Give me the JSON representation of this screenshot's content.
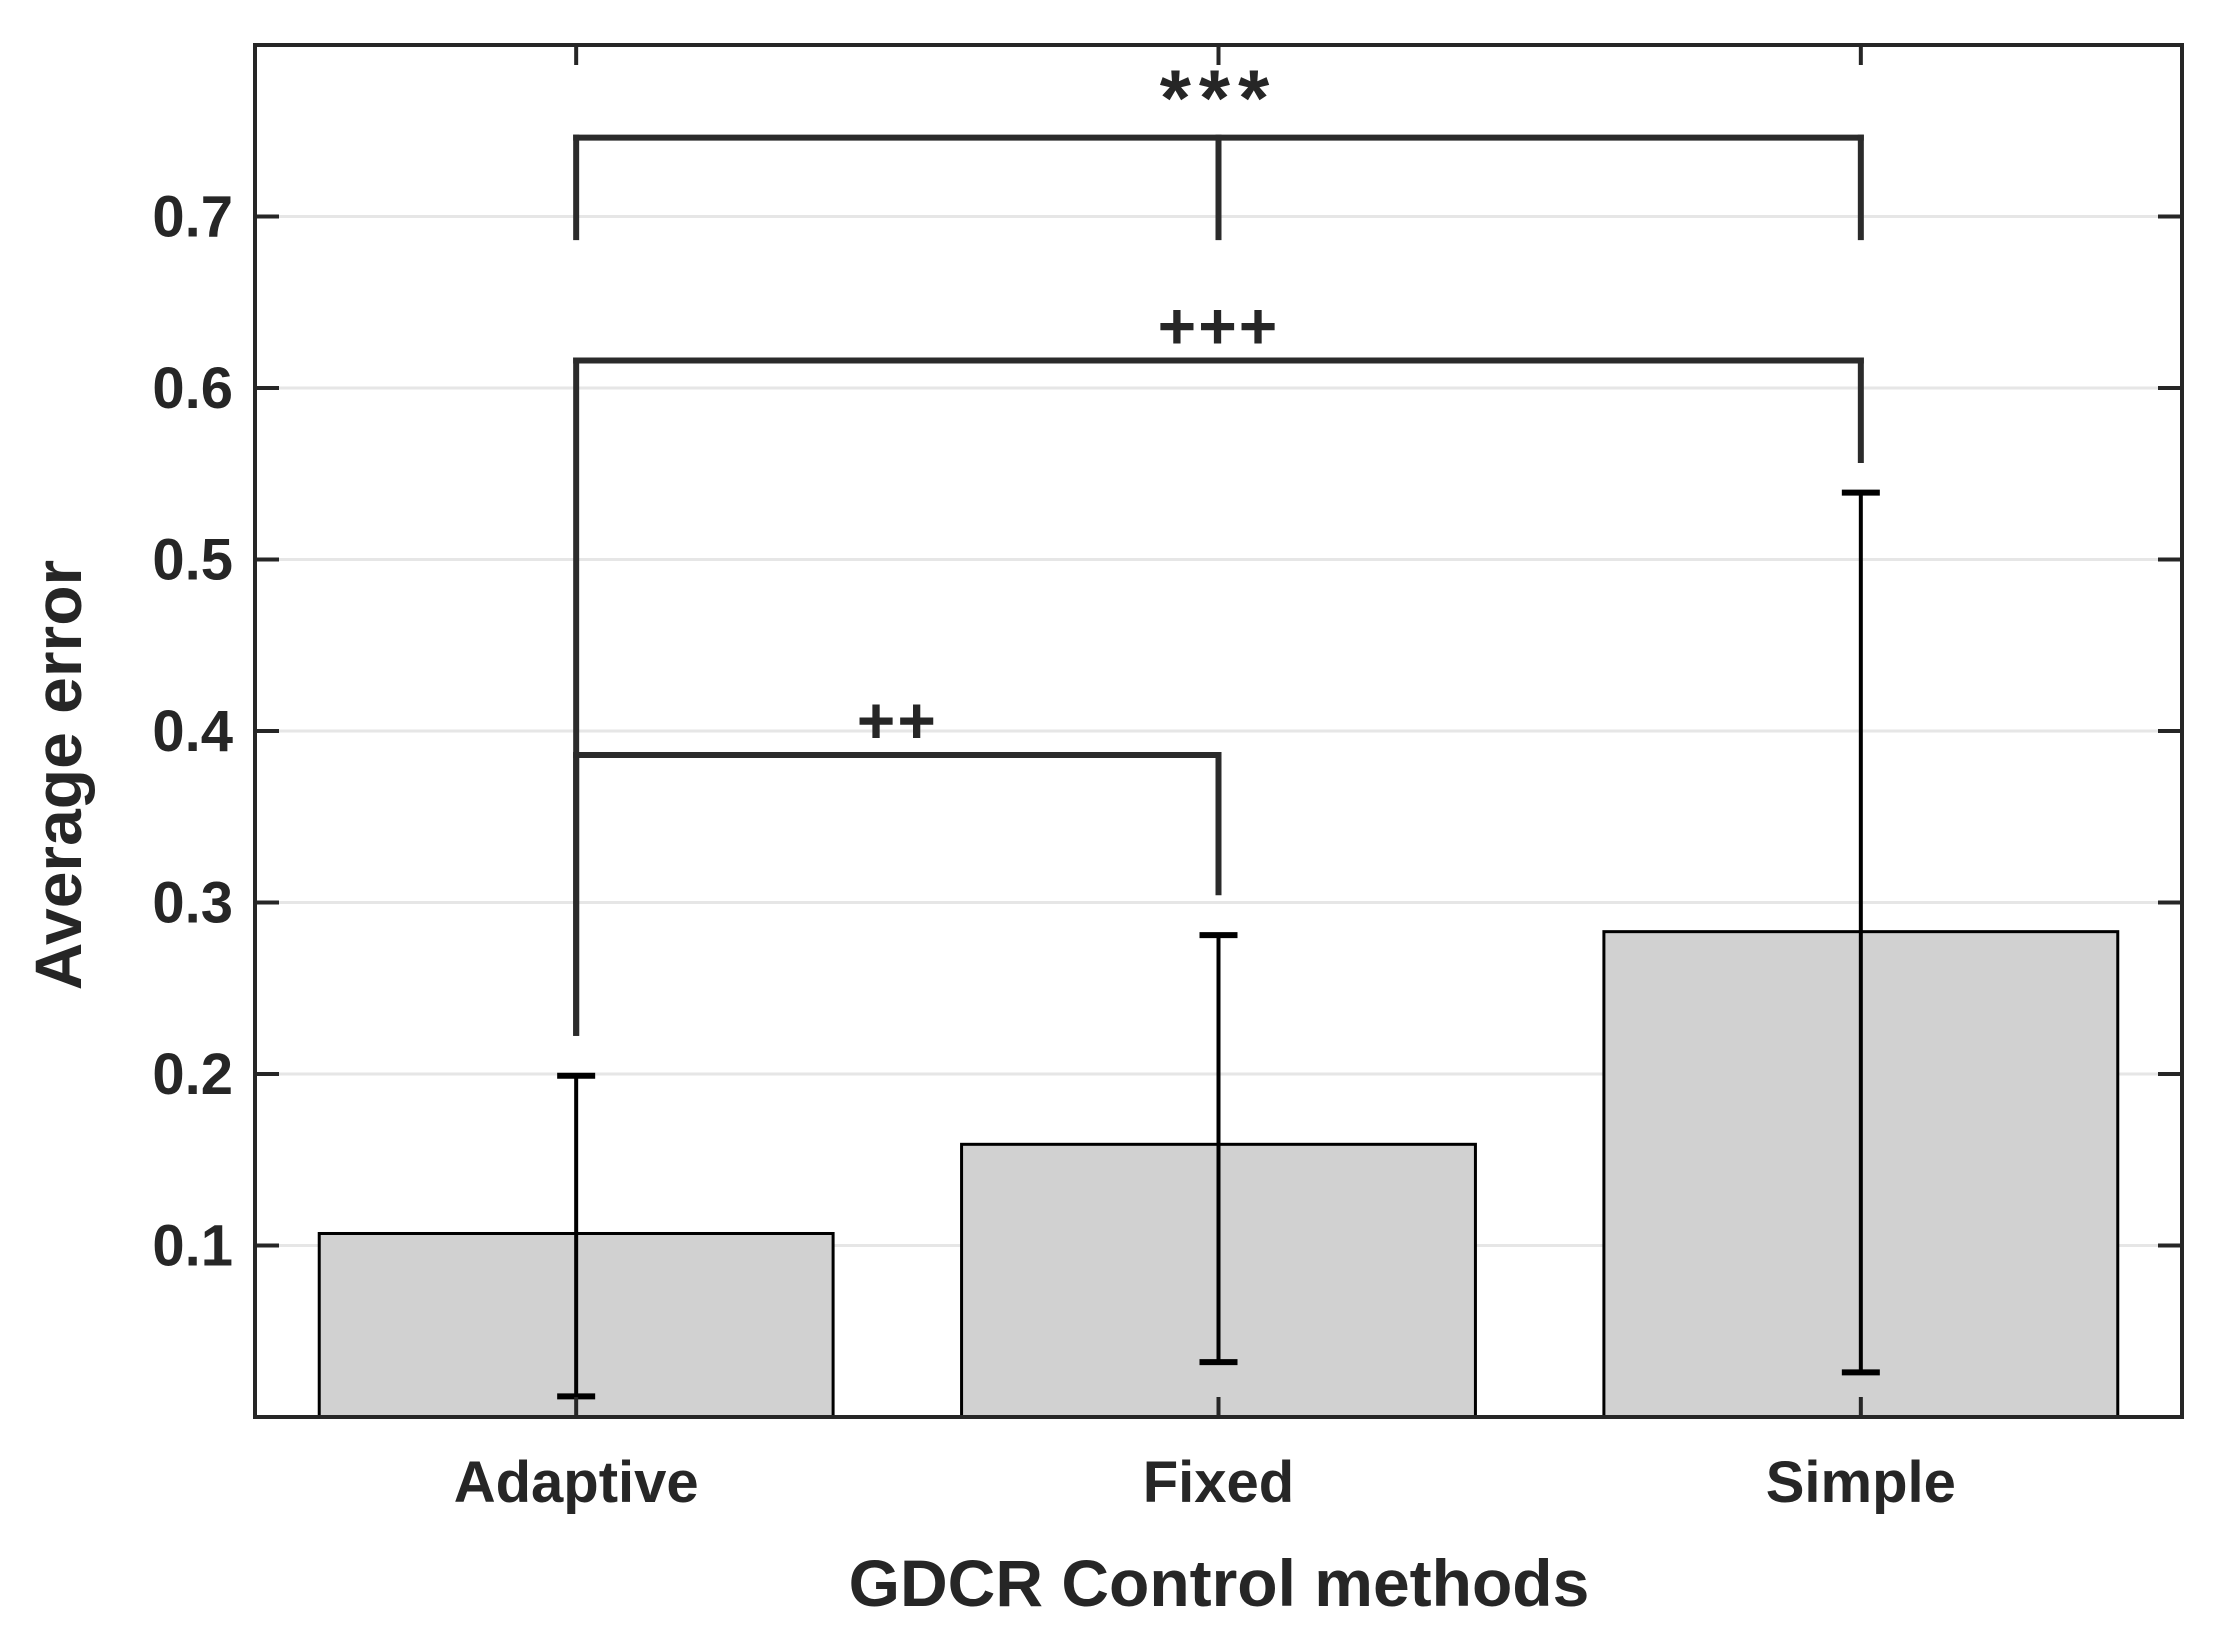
{
  "chart_data": {
    "type": "bar",
    "title": "",
    "xlabel": "GDCR Control methods",
    "ylabel": "Average error",
    "categories": [
      "Adaptive",
      "Fixed",
      "Simple"
    ],
    "values": [
      0.107,
      0.159,
      0.283
    ],
    "error_top": [
      0.199,
      0.281,
      0.539
    ],
    "error_bottom": [
      0.012,
      0.032,
      0.026
    ],
    "ylim": [
      0,
      0.8
    ],
    "yticks": [
      0.1,
      0.2,
      0.3,
      0.4,
      0.5,
      0.6,
      0.7
    ],
    "ytick_labels": [
      "0.1",
      "0.2",
      "0.3",
      "0.4",
      "0.5",
      "0.6",
      "0.7"
    ],
    "grid": "horizontal-only",
    "legend": "none",
    "significance_brackets": [
      {
        "label": "***",
        "from": "Adaptive",
        "to": "Simple",
        "height": 0.746,
        "drops": [
          {
            "at": "Adaptive",
            "to": 0.688
          },
          {
            "at": "Fixed",
            "to": 0.688
          },
          {
            "at": "Simple",
            "to": 0.688
          }
        ]
      },
      {
        "label": "+++",
        "from": "Adaptive",
        "to": "Simple",
        "height": 0.616,
        "drops": [
          {
            "at": "Adaptive",
            "to": 0.224
          },
          {
            "at": "Simple",
            "to": 0.558
          }
        ]
      },
      {
        "label": "++",
        "from": "Adaptive",
        "to": "Fixed",
        "height": 0.386,
        "drops": [
          {
            "at": "Adaptive",
            "to": 0.224
          },
          {
            "at": "Fixed",
            "to": 0.306
          }
        ]
      }
    ],
    "colors": {
      "bar_fill": "#d1d1d1",
      "bar_edge": "#000000",
      "error_bar": "#000000",
      "axis": "#262626",
      "grid": "#e6e6e6",
      "bracket": "#2b2b2b",
      "background": "#ffffff"
    }
  }
}
